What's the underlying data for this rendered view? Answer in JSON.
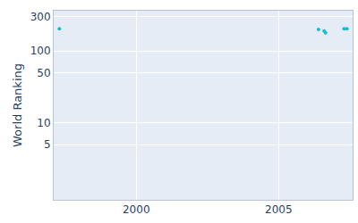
{
  "chart_data": {
    "type": "scatter",
    "y_label": "World Ranking",
    "series": [
      {
        "name": "World Ranking",
        "color": "#17becf",
        "marker": "circle",
        "x": [
          1997.3,
          2006.4,
          2006.6,
          2006.65,
          2007.3,
          2007.4
        ],
        "values": [
          205,
          200,
          190,
          180,
          205,
          205
        ]
      }
    ],
    "xlim": [
      1997.1,
      2007.6
    ],
    "xticks": [
      2000,
      2005
    ],
    "ylim": [
      0.85,
      365
    ],
    "yticks": [
      5,
      10,
      50,
      100,
      300
    ],
    "log": "y",
    "grid": true
  }
}
